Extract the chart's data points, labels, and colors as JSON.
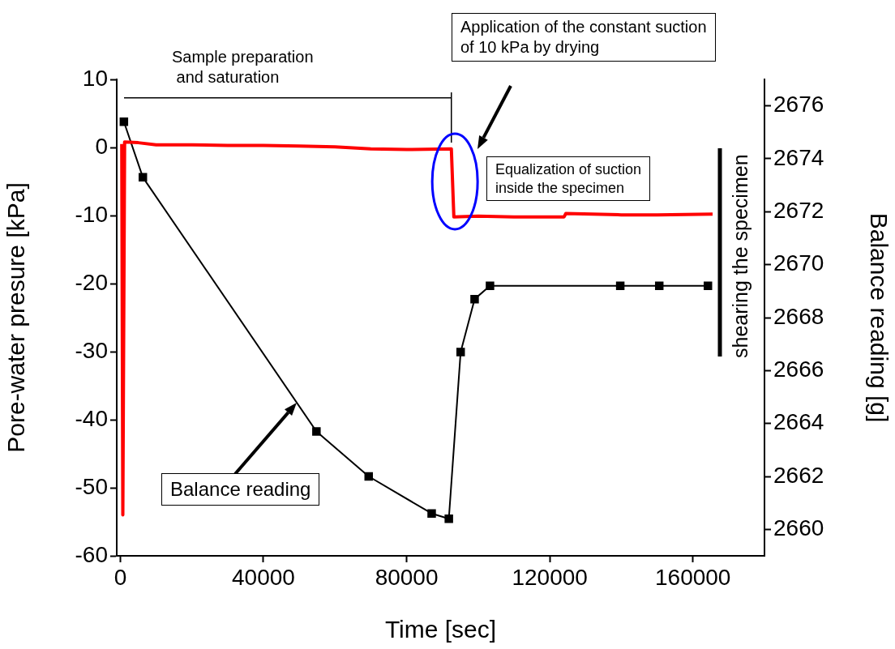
{
  "chart_data": {
    "type": "line",
    "xlabel": "Time [sec]",
    "ylabel": "Pore-water presure [kPa]",
    "y2label": "Balance reading [g]",
    "xlim": [
      -1000,
      180000
    ],
    "xticks": [
      0,
      40000,
      80000,
      120000,
      160000
    ],
    "ylim": [
      -60,
      10
    ],
    "yticks": [
      -60,
      -50,
      -40,
      -30,
      -20,
      -10,
      0,
      10
    ],
    "y2lim": [
      2659,
      2677
    ],
    "y2ticks": [
      2660,
      2662,
      2664,
      2666,
      2668,
      2670,
      2672,
      2674,
      2676
    ],
    "grid": false,
    "legend": false,
    "series": [
      {
        "color": "#ff0000",
        "marker": "none",
        "x": [
          400,
          700,
          1200,
          5000,
          10000,
          20000,
          30000,
          40000,
          50000,
          60000,
          70000,
          80000,
          92500,
          93200,
          100000,
          110000,
          124000,
          124500,
          140000,
          150000,
          165500
        ],
        "values": [
          0.5,
          -54,
          0.8,
          0.7,
          0.4,
          0.4,
          0.3,
          0.3,
          0.2,
          0.1,
          -0.2,
          -0.3,
          -0.2,
          -10.2,
          -10.1,
          -10.2,
          -10.2,
          -9.7,
          -9.9,
          -9.9,
          -9.8
        ]
      },
      {
        "color": "#000000",
        "marker": "square",
        "axis": "y2",
        "x": [
          1000,
          6300,
          54800,
          69400,
          87000,
          91800,
          95100,
          99000,
          103300,
          139700,
          150600,
          164200
        ],
        "values": [
          2675.4,
          2673.3,
          2663.7,
          2662.0,
          2660.6,
          2660.4,
          2666.7,
          2668.7,
          2669.2,
          2669.2,
          2669.2,
          2669.2
        ]
      }
    ],
    "annotations": [
      "Sample preparation\n and saturation",
      "Application of the constant suction\nof 10 kPa by drying",
      "Equalization of suction\ninside the specimen",
      "shearing the specimen",
      "Balance reading"
    ]
  }
}
